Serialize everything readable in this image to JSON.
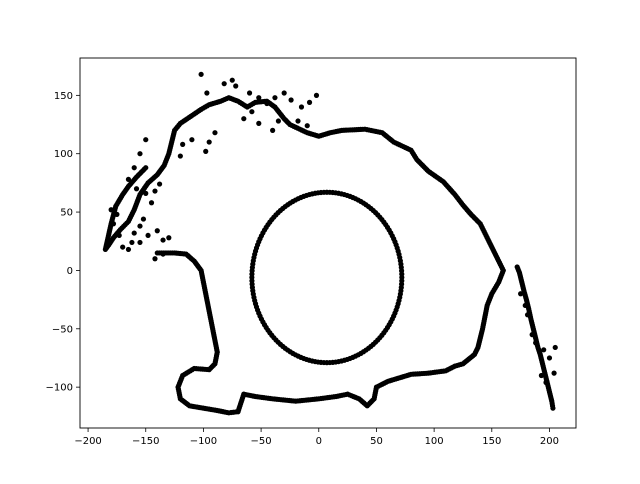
{
  "chart_data": {
    "type": "scatter",
    "title": "",
    "xlabel": "",
    "ylabel": "",
    "xlim": [
      -207,
      223
    ],
    "ylim": [
      -135,
      182
    ],
    "xticks": [
      -200,
      -150,
      -100,
      -50,
      0,
      50,
      100,
      150,
      200
    ],
    "yticks": [
      -100,
      -50,
      0,
      50,
      100,
      150
    ],
    "xtick_labels": [
      "−200",
      "−150",
      "−100",
      "−50",
      "0",
      "50",
      "100",
      "150",
      "200"
    ],
    "ytick_labels": [
      "−100",
      "−50",
      "0",
      "50",
      "100",
      "150"
    ],
    "grid": false,
    "legend": "none",
    "marker_color": "#000000",
    "series": [
      {
        "kind": "circle",
        "center": [
          7,
          -6
        ],
        "radius_x": 65,
        "radius_y": 73,
        "n_points": 160
      },
      {
        "kind": "polyline",
        "points": [
          [
            -70,
            -121
          ],
          [
            -65,
            -106
          ],
          [
            -55,
            -108
          ],
          [
            -40,
            -110
          ],
          [
            -20,
            -112
          ],
          [
            0,
            -110
          ],
          [
            15,
            -108
          ],
          [
            25,
            -106
          ],
          [
            35,
            -110
          ],
          [
            42,
            -116
          ],
          [
            48,
            -110
          ],
          [
            50,
            -100
          ],
          [
            60,
            -95
          ],
          [
            70,
            -92
          ],
          [
            80,
            -89
          ],
          [
            95,
            -88
          ],
          [
            110,
            -86
          ],
          [
            118,
            -82
          ],
          [
            125,
            -80
          ],
          [
            130,
            -76
          ],
          [
            135,
            -72
          ],
          [
            138,
            -66
          ],
          [
            140,
            -58
          ],
          [
            142,
            -50
          ],
          [
            144,
            -40
          ],
          [
            146,
            -30
          ],
          [
            150,
            -20
          ],
          [
            156,
            -10
          ],
          [
            160,
            0
          ],
          [
            155,
            10
          ],
          [
            150,
            20
          ],
          [
            145,
            30
          ],
          [
            140,
            40
          ],
          [
            132,
            48
          ],
          [
            125,
            56
          ],
          [
            118,
            65
          ],
          [
            108,
            76
          ],
          [
            95,
            85
          ],
          [
            85,
            95
          ],
          [
            80,
            103
          ],
          [
            65,
            110
          ],
          [
            55,
            118
          ],
          [
            40,
            121
          ],
          [
            20,
            120
          ],
          [
            10,
            118
          ],
          [
            0,
            115
          ],
          [
            -10,
            118
          ],
          [
            -25,
            125
          ],
          [
            -30,
            130
          ],
          [
            -38,
            140
          ],
          [
            -45,
            145
          ],
          [
            -55,
            144
          ],
          [
            -62,
            140
          ],
          [
            -70,
            145
          ],
          [
            -78,
            148
          ],
          [
            -85,
            145
          ],
          [
            -95,
            142
          ],
          [
            -102,
            138
          ],
          [
            -108,
            134
          ],
          [
            -114,
            130
          ],
          [
            -120,
            126
          ],
          [
            -125,
            120
          ],
          [
            -127,
            112
          ],
          [
            -130,
            100
          ],
          [
            -134,
            90
          ],
          [
            -140,
            82
          ],
          [
            -148,
            75
          ],
          [
            -155,
            65
          ],
          [
            -160,
            52
          ],
          [
            -165,
            42
          ],
          [
            -172,
            35
          ],
          [
            -178,
            28
          ],
          [
            -182,
            22
          ],
          [
            -185,
            18
          ],
          [
            -180,
            40
          ],
          [
            -176,
            55
          ],
          [
            -170,
            65
          ],
          [
            -165,
            72
          ],
          [
            -158,
            80
          ],
          [
            -150,
            88
          ]
        ]
      },
      {
        "kind": "polyline",
        "points": [
          [
            -140,
            15
          ],
          [
            -125,
            15
          ],
          [
            -115,
            14
          ],
          [
            -108,
            8
          ],
          [
            -102,
            0
          ],
          [
            -100,
            -10
          ],
          [
            -98,
            -20
          ],
          [
            -96,
            -30
          ],
          [
            -94,
            -40
          ],
          [
            -92,
            -50
          ],
          [
            -90,
            -60
          ],
          [
            -88,
            -70
          ],
          [
            -90,
            -80
          ],
          [
            -95,
            -85
          ],
          [
            -108,
            -84
          ],
          [
            -118,
            -90
          ],
          [
            -122,
            -100
          ],
          [
            -120,
            -110
          ],
          [
            -112,
            -116
          ],
          [
            -100,
            -118
          ],
          [
            -88,
            -120
          ],
          [
            -78,
            -122
          ],
          [
            -70,
            -121
          ]
        ]
      },
      {
        "kind": "polyline",
        "points": [
          [
            172,
            3
          ],
          [
            174,
            -2
          ],
          [
            176,
            -10
          ],
          [
            178,
            -18
          ],
          [
            180,
            -25
          ],
          [
            182,
            -33
          ],
          [
            184,
            -42
          ],
          [
            186,
            -50
          ],
          [
            188,
            -58
          ],
          [
            190,
            -66
          ],
          [
            192,
            -72
          ],
          [
            194,
            -80
          ],
          [
            196,
            -88
          ],
          [
            198,
            -96
          ],
          [
            200,
            -104
          ],
          [
            202,
            -112
          ],
          [
            203,
            -118
          ]
        ]
      },
      {
        "kind": "points",
        "points": [
          [
            -102,
            168
          ],
          [
            -97,
            152
          ],
          [
            -82,
            160
          ],
          [
            -75,
            163
          ],
          [
            -72,
            158
          ],
          [
            -60,
            152
          ],
          [
            -52,
            148
          ],
          [
            -45,
            143
          ],
          [
            -38,
            148
          ],
          [
            -30,
            152
          ],
          [
            -24,
            146
          ],
          [
            -15,
            140
          ],
          [
            -8,
            144
          ],
          [
            -2,
            150
          ],
          [
            -18,
            128
          ],
          [
            -10,
            124
          ],
          [
            -35,
            128
          ],
          [
            -40,
            120
          ],
          [
            -52,
            126
          ],
          [
            -58,
            136
          ],
          [
            -65,
            130
          ],
          [
            -90,
            118
          ],
          [
            -95,
            110
          ],
          [
            -98,
            102
          ],
          [
            -110,
            112
          ],
          [
            -118,
            108
          ],
          [
            -120,
            98
          ],
          [
            -150,
            112
          ],
          [
            -155,
            100
          ],
          [
            -160,
            88
          ],
          [
            -165,
            78
          ],
          [
            -158,
            70
          ],
          [
            -150,
            66
          ],
          [
            -145,
            58
          ],
          [
            -142,
            68
          ],
          [
            -138,
            74
          ],
          [
            -152,
            44
          ],
          [
            -155,
            38
          ],
          [
            -160,
            32
          ],
          [
            -175,
            48
          ],
          [
            -180,
            52
          ],
          [
            -178,
            40
          ],
          [
            -173,
            30
          ],
          [
            -170,
            20
          ],
          [
            -165,
            18
          ],
          [
            -162,
            24
          ],
          [
            -155,
            24
          ],
          [
            -148,
            30
          ],
          [
            -140,
            34
          ],
          [
            -135,
            26
          ],
          [
            -130,
            28
          ],
          [
            -142,
            10
          ],
          [
            -135,
            14
          ],
          [
            195,
            -68
          ],
          [
            200,
            -75
          ],
          [
            204,
            -88
          ],
          [
            205,
            -66
          ],
          [
            197,
            -96
          ],
          [
            193,
            -90
          ],
          [
            188,
            -62
          ],
          [
            185,
            -55
          ],
          [
            181,
            -38
          ],
          [
            179,
            -30
          ],
          [
            175,
            -20
          ]
        ]
      }
    ]
  }
}
